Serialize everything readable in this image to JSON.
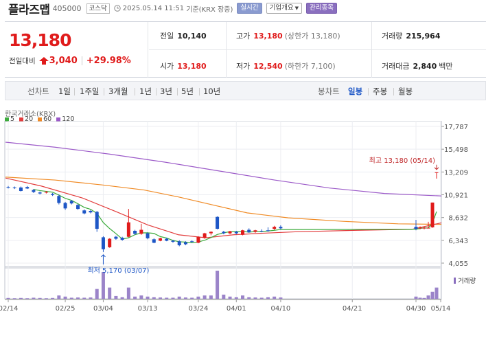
{
  "stock": {
    "name": "플라즈맵",
    "code": "405000",
    "market": "코스닥",
    "datetime": "2025.05.14 11:51",
    "basis": "기준(KRX 장중)"
  },
  "header_buttons": {
    "realtime": "실시간",
    "company": "기업개요",
    "managed": "관리종목"
  },
  "price": {
    "current": "13,180",
    "change_label": "전일대비",
    "change": "3,040",
    "rate": "+29.98%"
  },
  "stats": {
    "prev_close_label": "전일",
    "prev_close": "10,140",
    "high_label": "고가",
    "high": "13,180",
    "high_note": "(상한가 13,180)",
    "volume_label": "거래량",
    "volume": "215,964",
    "open_label": "시가",
    "open": "13,180",
    "low_label": "저가",
    "low": "12,540",
    "low_note": "(하한가 7,100)",
    "amount_label": "거래대금",
    "amount": "2,840",
    "amount_unit": "백만"
  },
  "toolbar": {
    "line_chart_label": "선차트",
    "periods": [
      "1일",
      "1주일",
      "3개월",
      "1년",
      "3년",
      "5년",
      "10년"
    ],
    "candle_label": "봉차트",
    "candle_periods": [
      "일봉",
      "주봉",
      "월봉"
    ],
    "candle_selected": "일봉"
  },
  "chart_source": "한국거래소(KRX)",
  "ma_legend": [
    {
      "label": "5",
      "color": "#3cab3c"
    },
    {
      "label": "20",
      "color": "#e23c3c"
    },
    {
      "label": "60",
      "color": "#f08a24"
    },
    {
      "label": "120",
      "color": "#9b59c8"
    }
  ],
  "volume_label": "거래량",
  "colors": {
    "up": "#e01b1b",
    "down": "#1d56c6",
    "accent": "#1d56c6"
  },
  "chart_data": {
    "type": "candlestick",
    "yticks": [
      "17,787",
      "15,498",
      "13,209",
      "10,921",
      "8,632",
      "6,343",
      "4,055"
    ],
    "ylim": [
      4055,
      17787
    ],
    "xticks": [
      "02/14",
      "02/25",
      "03/04",
      "03/13",
      "03/24",
      "04/01",
      "04/10",
      "04/21",
      "04/30",
      "05/14"
    ],
    "high_annotation": "최고 13,180 (05/14)",
    "low_annotation": "최저 5,170 (03/07)",
    "candles": [
      {
        "o": 11700,
        "h": 11800,
        "l": 11550,
        "c": 11650
      },
      {
        "o": 11650,
        "h": 11750,
        "l": 11500,
        "c": 11600
      },
      {
        "o": 11650,
        "h": 11750,
        "l": 11250,
        "c": 11300
      },
      {
        "o": 11700,
        "h": 11800,
        "l": 11500,
        "c": 11550
      },
      {
        "o": 11400,
        "h": 11500,
        "l": 11100,
        "c": 11200
      },
      {
        "o": 11150,
        "h": 11250,
        "l": 10950,
        "c": 11050
      },
      {
        "o": 11200,
        "h": 11300,
        "l": 11050,
        "c": 11200
      },
      {
        "o": 11000,
        "h": 11100,
        "l": 10800,
        "c": 10900
      },
      {
        "o": 10800,
        "h": 10950,
        "l": 9950,
        "c": 10100
      },
      {
        "o": 10100,
        "h": 10200,
        "l": 9400,
        "c": 9550
      },
      {
        "o": 10300,
        "h": 10400,
        "l": 9950,
        "c": 10050
      },
      {
        "o": 9900,
        "h": 10000,
        "l": 9400,
        "c": 9500
      },
      {
        "o": 9350,
        "h": 9450,
        "l": 8950,
        "c": 9050
      },
      {
        "o": 9300,
        "h": 9400,
        "l": 9050,
        "c": 9150
      },
      {
        "o": 9200,
        "h": 9300,
        "l": 7200,
        "c": 7500
      },
      {
        "o": 6650,
        "h": 6750,
        "l": 5170,
        "c": 5450
      },
      {
        "o": 5650,
        "h": 6550,
        "l": 5600,
        "c": 6500
      },
      {
        "o": 6700,
        "h": 6800,
        "l": 6400,
        "c": 6500
      },
      {
        "o": 6600,
        "h": 6700,
        "l": 6300,
        "c": 6400
      },
      {
        "o": 6700,
        "h": 9500,
        "l": 6650,
        "c": 8150
      },
      {
        "o": 7300,
        "h": 7400,
        "l": 6900,
        "c": 7000
      },
      {
        "o": 7000,
        "h": 8000,
        "l": 6900,
        "c": 7400
      },
      {
        "o": 7050,
        "h": 7150,
        "l": 6450,
        "c": 6550
      },
      {
        "o": 6450,
        "h": 6550,
        "l": 6050,
        "c": 6100
      },
      {
        "o": 6300,
        "h": 6600,
        "l": 6250,
        "c": 6550
      },
      {
        "o": 6500,
        "h": 6600,
        "l": 6250,
        "c": 6300
      },
      {
        "o": 6300,
        "h": 6400,
        "l": 6100,
        "c": 6200
      },
      {
        "o": 6250,
        "h": 6350,
        "l": 5750,
        "c": 5850
      },
      {
        "o": 6150,
        "h": 6250,
        "l": 5850,
        "c": 5950
      },
      {
        "o": 6250,
        "h": 6350,
        "l": 6100,
        "c": 6200
      },
      {
        "o": 6100,
        "h": 6750,
        "l": 6050,
        "c": 6700
      },
      {
        "o": 6600,
        "h": 7100,
        "l": 6500,
        "c": 7050
      },
      {
        "o": 7050,
        "h": 7250,
        "l": 6850,
        "c": 7200
      },
      {
        "o": 8700,
        "h": 8750,
        "l": 7450,
        "c": 7500
      },
      {
        "o": 7200,
        "h": 7300,
        "l": 6950,
        "c": 7050
      },
      {
        "o": 7050,
        "h": 7300,
        "l": 6950,
        "c": 7250
      },
      {
        "o": 7200,
        "h": 7300,
        "l": 6950,
        "c": 7050
      },
      {
        "o": 6900,
        "h": 7400,
        "l": 6850,
        "c": 7350
      },
      {
        "o": 7400,
        "h": 7550,
        "l": 7100,
        "c": 7150
      },
      {
        "o": 7200,
        "h": 7400,
        "l": 7100,
        "c": 7350
      },
      {
        "o": 7300,
        "h": 7450,
        "l": 7150,
        "c": 7250
      },
      {
        "o": 7350,
        "h": 7650,
        "l": 7200,
        "c": 7300
      },
      {
        "o": 7500,
        "h": 7800,
        "l": 7400,
        "c": 7700
      },
      {
        "o": 7700,
        "h": 7850,
        "l": 7450,
        "c": 7550
      }
    ],
    "late_candles": [
      {
        "o": 7700,
        "h": 8400,
        "l": 7350,
        "c": 7500
      },
      {
        "o": 7550,
        "h": 7750,
        "l": 7450,
        "c": 7650
      },
      {
        "o": 7600,
        "h": 7750,
        "l": 7450,
        "c": 7600
      },
      {
        "o": 7600,
        "h": 8200,
        "l": 7550,
        "c": 7600
      },
      {
        "o": 7650,
        "h": 10140,
        "l": 7600,
        "c": 10140
      },
      {
        "o": 13180,
        "h": 13180,
        "l": 12540,
        "c": 13180
      }
    ],
    "volume": [
      0.03,
      0.02,
      0.03,
      0.02,
      0.04,
      0.03,
      0.02,
      0.03,
      0.12,
      0.08,
      0.04,
      0.05,
      0.04,
      0.05,
      0.35,
      0.95,
      0.4,
      0.1,
      0.06,
      0.4,
      0.08,
      0.12,
      0.08,
      0.06,
      0.05,
      0.04,
      0.04,
      0.08,
      0.05,
      0.04,
      0.08,
      0.12,
      0.12,
      1.0,
      0.15,
      0.08,
      0.06,
      0.12,
      0.06,
      0.05,
      0.04,
      0.06,
      0.08,
      0.05
    ],
    "late_volume": [
      0.08,
      0.04,
      0.03,
      0.12,
      0.25,
      0.4
    ],
    "volume_ymax": 1.0
  }
}
